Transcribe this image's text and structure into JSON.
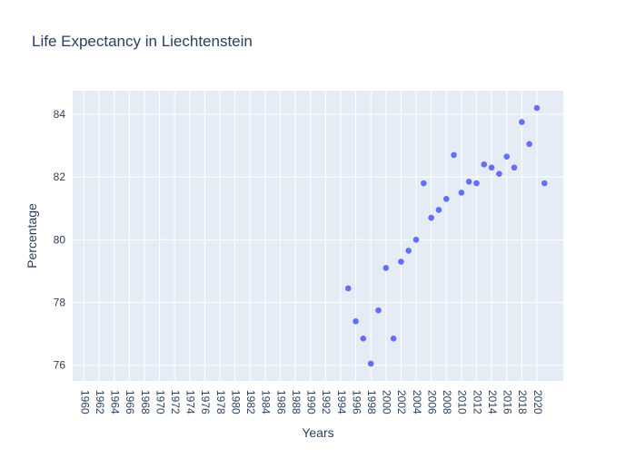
{
  "chart_data": {
    "type": "scatter",
    "title": "Life Expectancy in Liechtenstein",
    "xlabel": "Years",
    "ylabel": "Percentage",
    "x_categories": [
      "1960",
      "1962",
      "1964",
      "1966",
      "1968",
      "1970",
      "1972",
      "1974",
      "1976",
      "1978",
      "1980",
      "1982",
      "1984",
      "1986",
      "1988",
      "1990",
      "1992",
      "1994",
      "1996",
      "1998",
      "2000",
      "2002",
      "2004",
      "2006",
      "2008",
      "2010",
      "2012",
      "2014",
      "2016",
      "2018",
      "2020"
    ],
    "x_domain": [
      1958.5,
      2023.5
    ],
    "ylim": [
      75.5,
      84.75
    ],
    "yticks": [
      76,
      78,
      80,
      82,
      84
    ],
    "grid": true,
    "marker_color": "#636efa",
    "plot_bg": "#e5ecf6",
    "series": [
      {
        "x": [
          1995,
          1996,
          1997,
          1998,
          1999,
          2000,
          2001,
          2002,
          2003,
          2004,
          2005,
          2006,
          2007,
          2008,
          2009,
          2010,
          2011,
          2012,
          2013,
          2014,
          2015,
          2016,
          2017,
          2018,
          2019,
          2020,
          2021
        ],
        "y": [
          78.45,
          77.4,
          76.85,
          76.05,
          77.75,
          79.1,
          76.85,
          79.3,
          79.65,
          80.0,
          81.8,
          80.7,
          80.95,
          81.3,
          82.7,
          81.5,
          81.85,
          81.8,
          82.4,
          82.3,
          82.1,
          82.65,
          82.3,
          83.75,
          83.05,
          84.2,
          81.8
        ]
      }
    ]
  }
}
